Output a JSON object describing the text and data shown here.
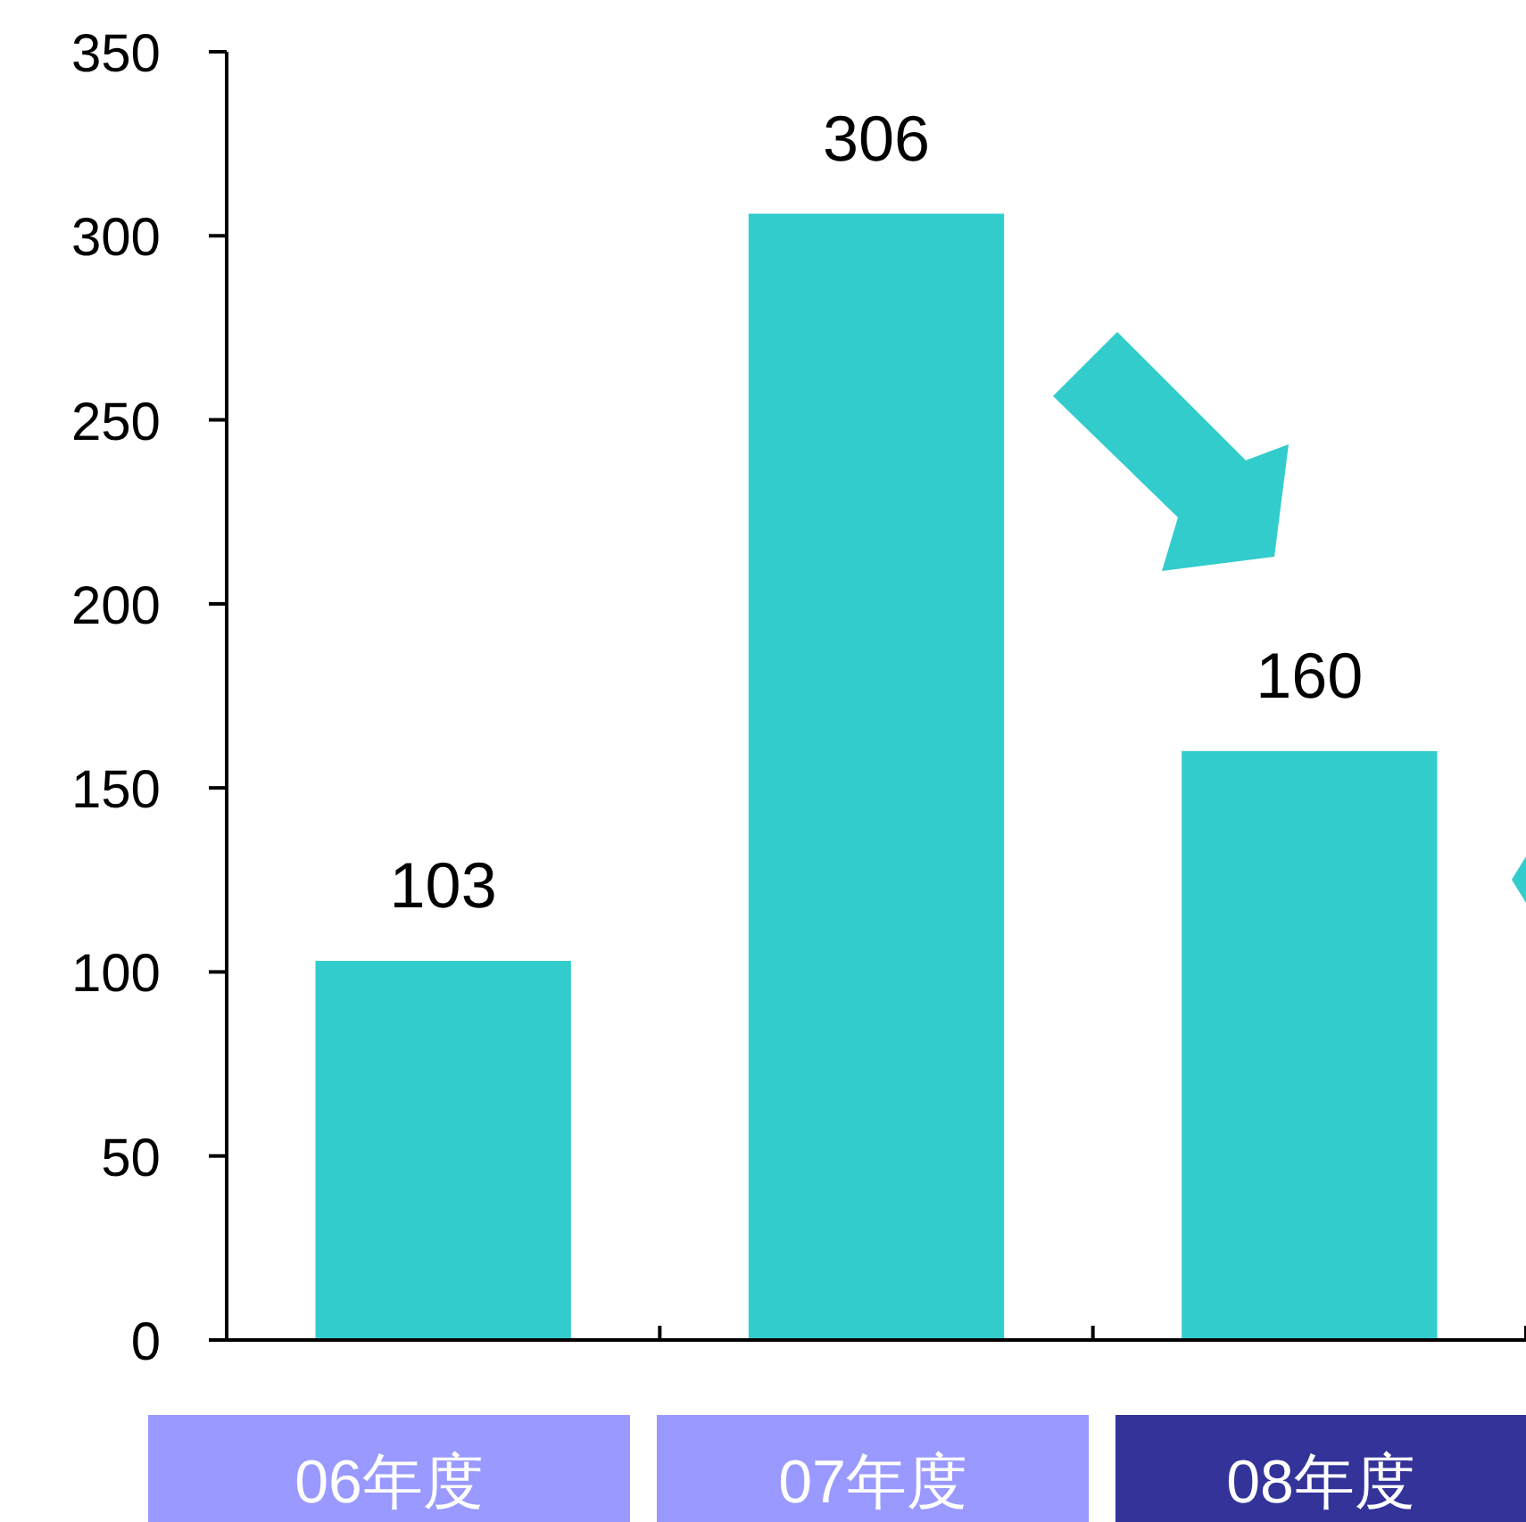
{
  "chart_data": {
    "type": "bar",
    "categories": [
      "06年度",
      "07年度",
      "08年度"
    ],
    "values": [
      103,
      306,
      160
    ],
    "color": "#33cccc",
    "ylim": [
      0,
      350
    ],
    "yticks": [
      0,
      50,
      100,
      150,
      200,
      250,
      300,
      350
    ],
    "data_labels": true,
    "grid": false
  }
}
